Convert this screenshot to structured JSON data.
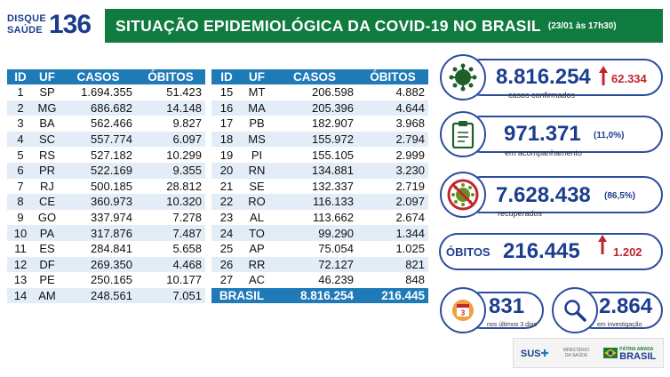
{
  "logo": {
    "line1": "DISQUE",
    "line2": "SAÚDE",
    "number": "136"
  },
  "header": {
    "title": "SITUAÇÃO EPIDEMIOLÓGICA DA COVID-19 NO BRASIL",
    "date": "(23/01 às 17h30)"
  },
  "table": {
    "headers": [
      "ID",
      "UF",
      "CASOS",
      "ÓBITOS"
    ],
    "left": [
      [
        "1",
        "SP",
        "1.694.355",
        "51.423"
      ],
      [
        "2",
        "MG",
        "686.682",
        "14.148"
      ],
      [
        "3",
        "BA",
        "562.466",
        "9.827"
      ],
      [
        "4",
        "SC",
        "557.774",
        "6.097"
      ],
      [
        "5",
        "RS",
        "527.182",
        "10.299"
      ],
      [
        "6",
        "PR",
        "522.169",
        "9.355"
      ],
      [
        "7",
        "RJ",
        "500.185",
        "28.812"
      ],
      [
        "8",
        "CE",
        "360.973",
        "10.320"
      ],
      [
        "9",
        "GO",
        "337.974",
        "7.278"
      ],
      [
        "10",
        "PA",
        "317.876",
        "7.487"
      ],
      [
        "11",
        "ES",
        "284.841",
        "5.658"
      ],
      [
        "12",
        "DF",
        "269.350",
        "4.468"
      ],
      [
        "13",
        "PE",
        "250.165",
        "10.177"
      ],
      [
        "14",
        "AM",
        "248.561",
        "7.051"
      ]
    ],
    "right": [
      [
        "15",
        "MT",
        "206.598",
        "4.882"
      ],
      [
        "16",
        "MA",
        "205.396",
        "4.644"
      ],
      [
        "17",
        "PB",
        "182.907",
        "3.968"
      ],
      [
        "18",
        "MS",
        "155.972",
        "2.794"
      ],
      [
        "19",
        "PI",
        "155.105",
        "2.999"
      ],
      [
        "20",
        "RN",
        "134.881",
        "3.230"
      ],
      [
        "21",
        "SE",
        "132.337",
        "2.719"
      ],
      [
        "22",
        "RO",
        "116.133",
        "2.097"
      ],
      [
        "23",
        "AL",
        "113.662",
        "2.674"
      ],
      [
        "24",
        "TO",
        "99.290",
        "1.344"
      ],
      [
        "25",
        "AP",
        "75.054",
        "1.025"
      ],
      [
        "26",
        "RR",
        "72.127",
        "821"
      ],
      [
        "27",
        "AC",
        "46.239",
        "848"
      ]
    ],
    "total": {
      "label": "BRASIL",
      "casos": "8.816.254",
      "obitos": "216.445"
    }
  },
  "stats": {
    "confirmed": {
      "value": "8.816.254",
      "delta": "62.334",
      "label": "casos confirmados"
    },
    "monitoring": {
      "value": "971.371",
      "pct": "(11,0%)",
      "label": "em acompanhamento"
    },
    "recovered": {
      "value": "7.628.438",
      "pct": "(86,5%)",
      "label": "recuperados"
    },
    "deaths": {
      "title": "ÓBITOS",
      "value": "216.445",
      "delta": "1.202"
    },
    "recent": {
      "value": "831",
      "label": "nos últimos 3 dias",
      "badge": "3"
    },
    "investigation": {
      "value": "2.864",
      "label": "em investigação"
    }
  },
  "footer": {
    "sus": "SUS",
    "ministry": "MINISTÉRIO DA SAÚDE",
    "gov_small": "PÁTRIA AMADA",
    "gov_big": "BRASIL"
  },
  "colors": {
    "accent_green": "#0f7b3f",
    "table_blue": "#1f7ab8",
    "navy": "#1b3d8f",
    "alert_red": "#c0262d"
  }
}
